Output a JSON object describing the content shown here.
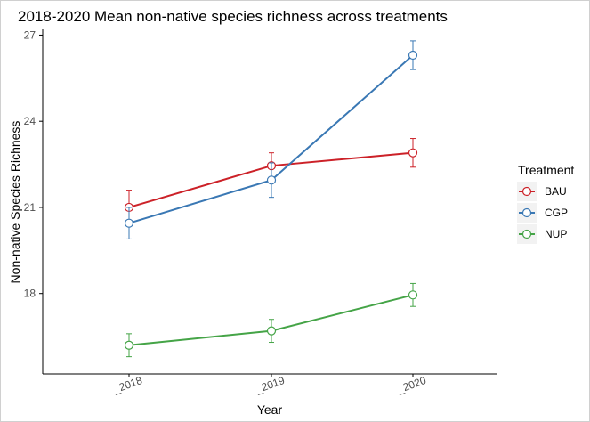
{
  "chart_data": {
    "type": "line",
    "title": "2018-2020 Mean non-native species richness across treatments",
    "xlabel": "Year",
    "ylabel": "Non-native Species Richness",
    "categories": [
      "_2018",
      "_2019",
      "_2020"
    ],
    "yticks": [
      18,
      21,
      24,
      27
    ],
    "ylim": [
      15.2,
      27.2
    ],
    "grid": false,
    "legend_title": "Treatment",
    "legend_position": "right",
    "series": [
      {
        "name": "BAU",
        "color": "#cc2128",
        "values": [
          21.0,
          22.45,
          22.9
        ],
        "error": [
          0.6,
          0.45,
          0.5
        ]
      },
      {
        "name": "CGP",
        "color": "#3a78b4",
        "values": [
          20.45,
          21.95,
          26.3
        ],
        "error": [
          0.55,
          0.6,
          0.5
        ]
      },
      {
        "name": "NUP",
        "color": "#45a447",
        "values": [
          16.2,
          16.7,
          17.95
        ],
        "error": [
          0.4,
          0.4,
          0.4
        ]
      }
    ]
  }
}
